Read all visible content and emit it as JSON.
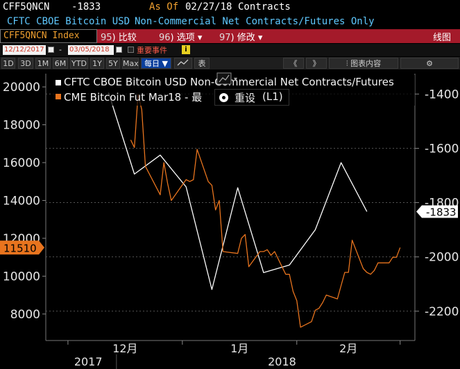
{
  "header": {
    "ticker": "CFF5QNCN",
    "last_value": "-1833",
    "as_of_label": "As Of",
    "as_of_date": "02/27/18",
    "units": "Contracts",
    "security_line_1": "CFTC CBOE Bitcoin USD",
    "security_line_2": "Non-Commercial Net Contracts/Futures Only"
  },
  "menu": {
    "ticker_field": "CFF5QNCN Index",
    "items": [
      {
        "num": "95",
        "label": "比较"
      },
      {
        "num": "96",
        "label": "选项"
      },
      {
        "num": "97",
        "label": "修改"
      }
    ],
    "chart_type": "线图"
  },
  "date_range": {
    "start": "12/12/2017",
    "separator": "-",
    "end": "03/05/2018",
    "events_label": "重要事件",
    "info_glyph": "i"
  },
  "toolbar": {
    "periods": [
      "1D",
      "3D",
      "1M",
      "6M",
      "YTD",
      "1Y",
      "5Y",
      "Max"
    ],
    "frequency": "每日",
    "table_label": "表",
    "nav_back": "《",
    "nav_forward": "》",
    "chart_content_label": "图表内容"
  },
  "legend": {
    "popup_label": "重设",
    "popup_suffix": "(L1)"
  },
  "colors": {
    "white_series": "#ffffff",
    "orange_series": "#e8741e",
    "background": "#000000",
    "red_bar": "#a41a2a",
    "cyan_text": "#5fc8ff"
  },
  "chart_data": {
    "type": "line",
    "x_ticks": [
      {
        "date": "2017-12-01",
        "label": "12月"
      },
      {
        "date": "2018-01-01",
        "label": "1月"
      },
      {
        "date": "2018-02-01",
        "label": "2月"
      }
    ],
    "year_labels": [
      "2017",
      "2018"
    ],
    "left_axis": {
      "ticks": [
        8000,
        10000,
        12000,
        14000,
        16000,
        18000,
        20000
      ],
      "range": [
        6600,
        20700
      ],
      "current_label": "11510"
    },
    "right_axis": {
      "ticks": [
        -1400,
        -1600,
        -1800,
        -2000,
        -2200
      ],
      "range": [
        -2308,
        -1325
      ],
      "current_label": "-1833"
    },
    "series": [
      {
        "name": "CFTC CBOE Bitcoin USD Non-Commercial Net Contracts/Futures",
        "axis": "right",
        "color": "#ffffff",
        "points": [
          [
            "2017-12-12",
            -1395
          ],
          [
            "2017-12-19",
            -1695
          ],
          [
            "2017-12-26",
            -1625
          ],
          [
            "2018-01-02",
            -1742
          ],
          [
            "2018-01-09",
            -2120
          ],
          [
            "2018-01-16",
            -1745
          ],
          [
            "2018-01-23",
            -2058
          ],
          [
            "2018-01-30",
            -2030
          ],
          [
            "2018-02-06",
            -1900
          ],
          [
            "2018-02-13",
            -1653
          ],
          [
            "2018-02-20",
            -1833
          ]
        ]
      },
      {
        "name": "CME Bitcoin Fut Mar18 - 最",
        "axis": "left",
        "color": "#e8741e",
        "points": [
          [
            "2017-12-18",
            17200
          ],
          [
            "2017-12-19",
            16800
          ],
          [
            "2017-12-20",
            19600
          ],
          [
            "2017-12-21",
            18800
          ],
          [
            "2017-12-22",
            15800
          ],
          [
            "2017-12-26",
            14300
          ],
          [
            "2017-12-27",
            16000
          ],
          [
            "2017-12-28",
            14900
          ],
          [
            "2017-12-29",
            14000
          ],
          [
            "2018-01-02",
            15100
          ],
          [
            "2018-01-03",
            15000
          ],
          [
            "2018-01-04",
            15100
          ],
          [
            "2018-01-05",
            16700
          ],
          [
            "2018-01-08",
            15000
          ],
          [
            "2018-01-09",
            14800
          ],
          [
            "2018-01-10",
            13500
          ],
          [
            "2018-01-11",
            14000
          ],
          [
            "2018-01-12",
            11300
          ],
          [
            "2018-01-16",
            11200
          ],
          [
            "2018-01-17",
            12000
          ],
          [
            "2018-01-18",
            12200
          ],
          [
            "2018-01-19",
            10500
          ],
          [
            "2018-01-22",
            11300
          ],
          [
            "2018-01-23",
            11300
          ],
          [
            "2018-01-24",
            11400
          ],
          [
            "2018-01-25",
            11100
          ],
          [
            "2018-01-26",
            11300
          ],
          [
            "2018-01-29",
            10100
          ],
          [
            "2018-01-30",
            10100
          ],
          [
            "2018-01-31",
            9200
          ],
          [
            "2018-02-01",
            8700
          ],
          [
            "2018-02-02",
            7300
          ],
          [
            "2018-02-05",
            7600
          ],
          [
            "2018-02-06",
            8200
          ],
          [
            "2018-02-07",
            8300
          ],
          [
            "2018-02-08",
            8600
          ],
          [
            "2018-02-09",
            9000
          ],
          [
            "2018-02-12",
            8800
          ],
          [
            "2018-02-13",
            9500
          ],
          [
            "2018-02-14",
            10200
          ],
          [
            "2018-02-15",
            10200
          ],
          [
            "2018-02-16",
            11900
          ],
          [
            "2018-02-19",
            10400
          ],
          [
            "2018-02-20",
            10200
          ],
          [
            "2018-02-21",
            10100
          ],
          [
            "2018-02-22",
            10300
          ],
          [
            "2018-02-23",
            10700
          ],
          [
            "2018-02-26",
            10700
          ],
          [
            "2018-02-27",
            11000
          ],
          [
            "2018-02-28",
            11000
          ],
          [
            "2018-03-01",
            11510
          ]
        ]
      }
    ],
    "grid": false
  }
}
